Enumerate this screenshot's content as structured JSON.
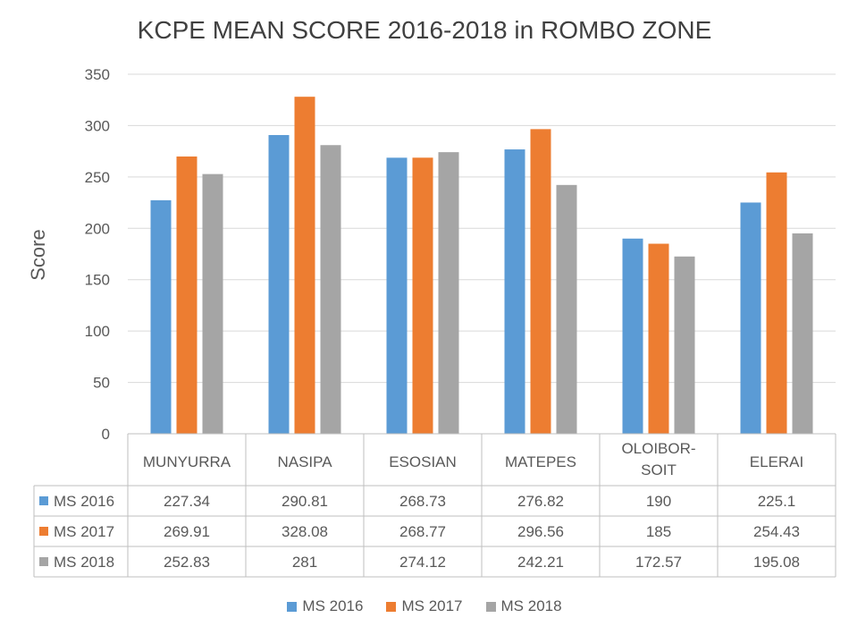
{
  "chart_data": {
    "type": "bar",
    "title": "KCPE MEAN SCORE 2016-2018 in ROMBO ZONE",
    "ylabel": "Score",
    "xlabel": "",
    "ylim": [
      0,
      350
    ],
    "yticks": [
      0,
      50,
      100,
      150,
      200,
      250,
      300,
      350
    ],
    "grid": true,
    "legend_position": "bottom",
    "data_table": true,
    "categories": [
      "MUNYURRA",
      "NASIPA",
      "ESOSIAN",
      "MATEPES",
      "OLOIBOR-SOIT",
      "ELERAI"
    ],
    "category_lines": [
      [
        "MUNYURRA"
      ],
      [
        "NASIPA"
      ],
      [
        "ESOSIAN"
      ],
      [
        "MATEPES"
      ],
      [
        "OLOIBOR-",
        "SOIT"
      ],
      [
        "ELERAI"
      ]
    ],
    "series": [
      {
        "name": "MS 2016",
        "color": "#5B9BD5",
        "values": [
          227.34,
          290.81,
          268.73,
          276.82,
          190,
          225.1
        ]
      },
      {
        "name": "MS 2017",
        "color": "#ED7D31",
        "values": [
          269.91,
          328.08,
          268.77,
          296.56,
          185,
          254.43
        ]
      },
      {
        "name": "MS 2018",
        "color": "#A5A5A5",
        "values": [
          252.83,
          281,
          274.12,
          242.21,
          172.57,
          195.08
        ]
      }
    ]
  }
}
